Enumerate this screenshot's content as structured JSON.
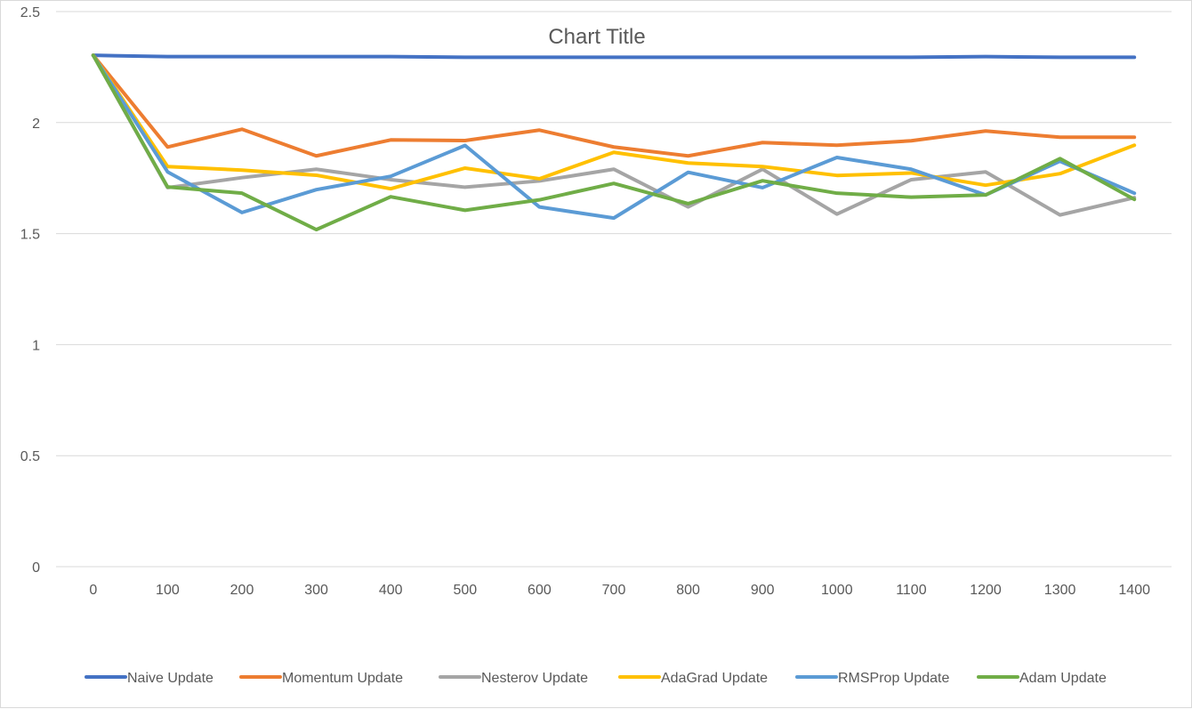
{
  "chart_data": {
    "type": "line",
    "title": "Chart Title",
    "xlabel": "",
    "ylabel": "",
    "x": [
      "0",
      "100",
      "200",
      "300",
      "400",
      "500",
      "600",
      "700",
      "800",
      "900",
      "1000",
      "1100",
      "1200",
      "1300",
      "1400"
    ],
    "ylim": [
      0,
      2.5
    ],
    "yticks": [
      "0",
      "0.5",
      "1",
      "1.5",
      "2",
      "2.5"
    ],
    "grid": true,
    "legend_position": "bottom",
    "series": [
      {
        "name": "Naive Update",
        "color": "#4472c4",
        "values": [
          2.303,
          2.297,
          2.297,
          2.297,
          2.297,
          2.294,
          2.294,
          2.294,
          2.294,
          2.294,
          2.294,
          2.294,
          2.297,
          2.294,
          2.294
        ]
      },
      {
        "name": "Momentum Update",
        "color": "#ed7d31",
        "values": [
          2.303,
          1.89,
          1.97,
          1.85,
          1.922,
          1.919,
          1.966,
          1.89,
          1.85,
          1.91,
          1.898,
          1.918,
          1.962,
          1.934,
          1.934
        ]
      },
      {
        "name": "Nesterov Update",
        "color": "#a5a5a5",
        "values": [
          2.303,
          1.707,
          1.752,
          1.79,
          1.743,
          1.709,
          1.737,
          1.79,
          1.62,
          1.79,
          1.588,
          1.743,
          1.778,
          1.584,
          1.662
        ]
      },
      {
        "name": "AdaGrad Update",
        "color": "#ffc000",
        "values": [
          2.303,
          1.802,
          1.786,
          1.763,
          1.702,
          1.795,
          1.747,
          1.866,
          1.818,
          1.802,
          1.762,
          1.773,
          1.718,
          1.77,
          1.898
        ]
      },
      {
        "name": "RMSProp Update",
        "color": "#5b9bd5",
        "values": [
          2.303,
          1.778,
          1.595,
          1.698,
          1.758,
          1.897,
          1.62,
          1.57,
          1.776,
          1.707,
          1.843,
          1.79,
          1.674,
          1.826,
          1.682
        ]
      },
      {
        "name": "Adam Update",
        "color": "#70ad47",
        "values": [
          2.303,
          1.71,
          1.682,
          1.518,
          1.666,
          1.605,
          1.652,
          1.726,
          1.635,
          1.738,
          1.682,
          1.664,
          1.674,
          1.838,
          1.654
        ]
      }
    ]
  }
}
